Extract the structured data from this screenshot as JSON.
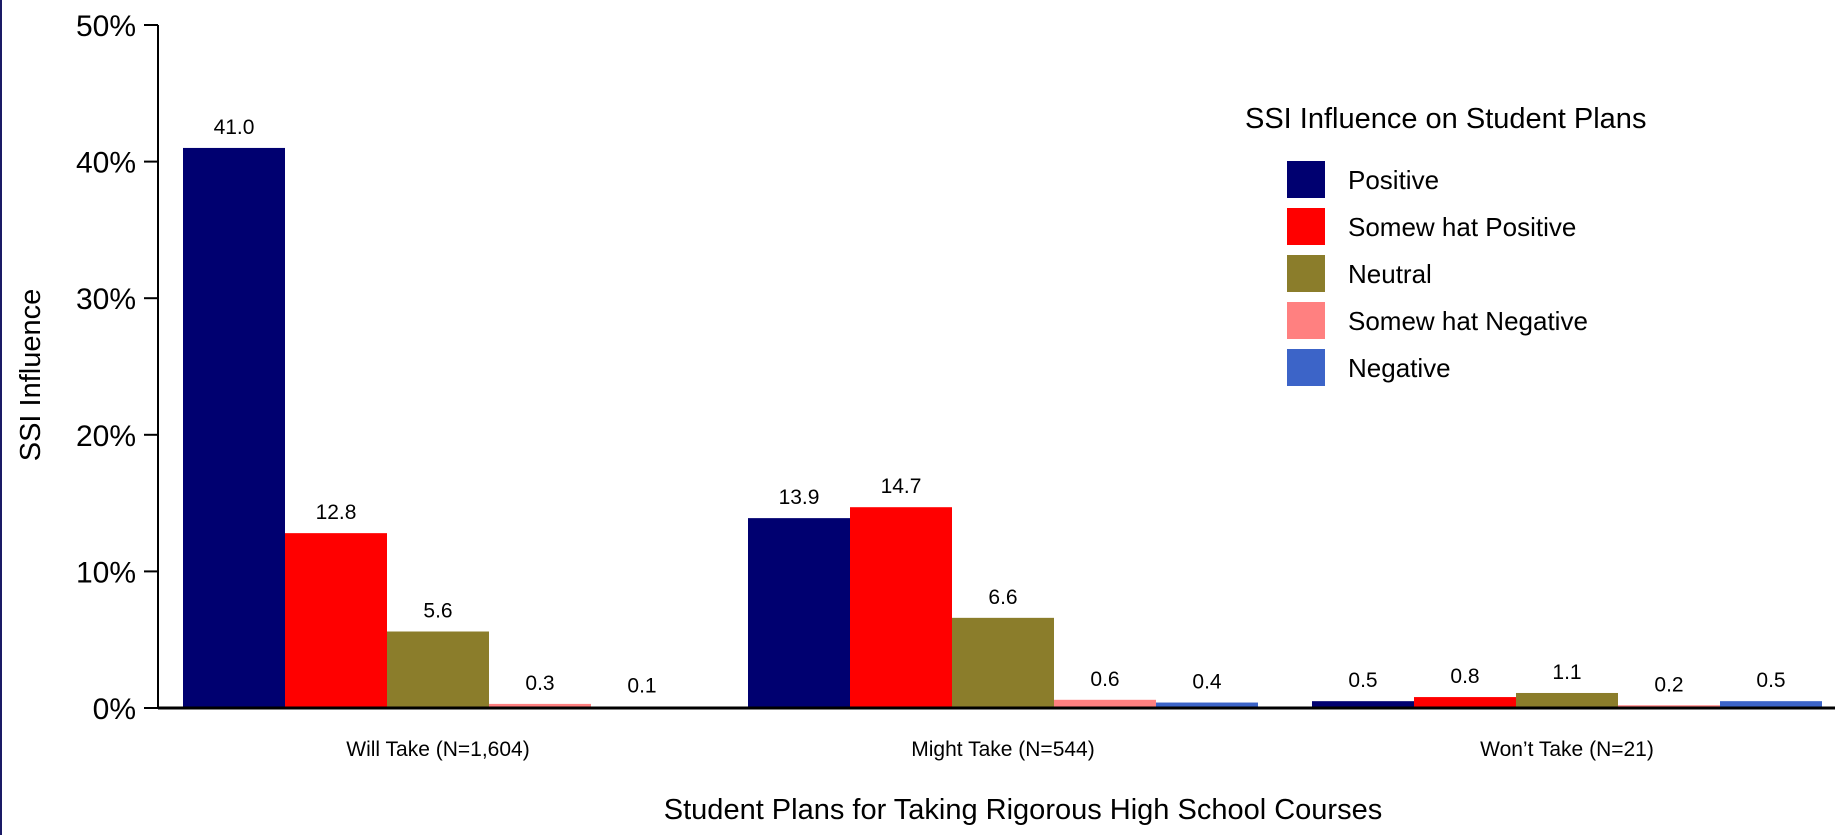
{
  "chart_data": {
    "type": "bar",
    "title": "",
    "xlabel": "Student Plans for Taking Rigorous High School Courses",
    "ylabel": "SSI Influence",
    "ylim": [
      0,
      50
    ],
    "yticks": [
      "0%",
      "10%",
      "20%",
      "30%",
      "40%",
      "50%"
    ],
    "ytick_values": [
      0,
      10,
      20,
      30,
      40,
      50
    ],
    "categories": [
      "Will Take (N=1,604)",
      "Might Take (N=544)",
      "Won’t Take (N=21)"
    ],
    "legend_title": "SSI Influence on Student Plans",
    "legend_position": "top-right",
    "grid": false,
    "series": [
      {
        "name": "Positive",
        "color": "#000070",
        "values": [
          41.0,
          13.9,
          0.5
        ],
        "labels": [
          "41.0",
          "13.9",
          "0.5"
        ]
      },
      {
        "name": "Somew hat Positive",
        "color": "#ff0000",
        "values": [
          12.8,
          14.7,
          0.8
        ],
        "labels": [
          "12.8",
          "14.7",
          "0.8"
        ]
      },
      {
        "name": "Neutral",
        "color": "#8b7d2b",
        "values": [
          5.6,
          6.6,
          1.1
        ],
        "labels": [
          "5.6",
          "6.6",
          "1.1"
        ]
      },
      {
        "name": "Somew hat Negative",
        "color": "#ff8080",
        "values": [
          0.3,
          0.6,
          0.2
        ],
        "labels": [
          "0.3",
          "0.6",
          "0.2"
        ]
      },
      {
        "name": "Negative",
        "color": "#3c64c8",
        "values": [
          0.1,
          0.4,
          0.5
        ],
        "labels": [
          "0.1",
          "0.4",
          "0.5"
        ]
      }
    ]
  }
}
